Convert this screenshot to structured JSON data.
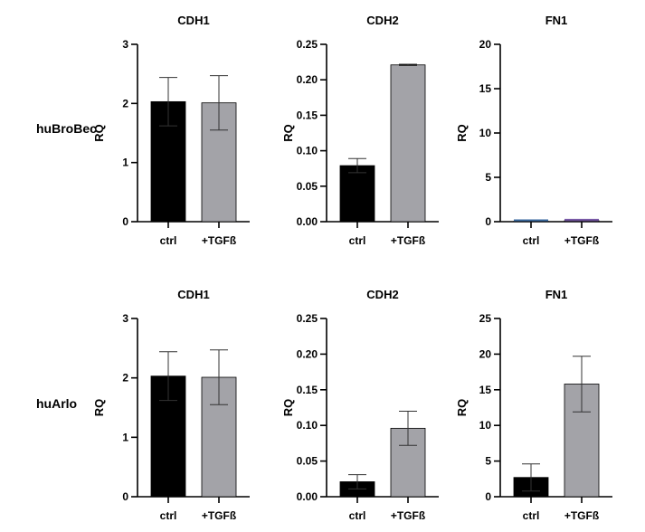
{
  "row_labels": [
    "huBroBec",
    "huArlo"
  ],
  "chart_data": [
    {
      "type": "bar",
      "title": "CDH1",
      "ylabel": "RQ",
      "categories": [
        "ctrl",
        "+TGFß"
      ],
      "values": [
        2.03,
        2.01
      ],
      "errors": [
        0.41,
        0.46
      ],
      "ylim": [
        0,
        3
      ],
      "yticks": [
        "0",
        "1",
        "2",
        "3"
      ],
      "colors": [
        "#000000",
        "#a3a3a8"
      ]
    },
    {
      "type": "bar",
      "title": "CDH2",
      "ylabel": "RQ",
      "categories": [
        "ctrl",
        "+TGFß"
      ],
      "values": [
        0.079,
        0.221
      ],
      "errors": [
        0.01,
        0.001
      ],
      "ylim": [
        0,
        0.25
      ],
      "yticks": [
        "0.00",
        "0.05",
        "0.10",
        "0.15",
        "0.20",
        "0.25"
      ],
      "colors": [
        "#000000",
        "#a3a3a8"
      ]
    },
    {
      "type": "bar",
      "title": "FN1",
      "ylabel": "RQ",
      "categories": [
        "ctrl",
        "+TGFß"
      ],
      "values": [
        0.05,
        0.12
      ],
      "errors": [
        0,
        0
      ],
      "ylim": [
        0,
        20
      ],
      "yticks": [
        "0",
        "5",
        "10",
        "15",
        "20"
      ],
      "colors": [
        "#3a6aa0",
        "#7a5aa8"
      ]
    },
    {
      "type": "bar",
      "title": "CDH1",
      "ylabel": "RQ",
      "categories": [
        "ctrl",
        "+TGFß"
      ],
      "values": [
        2.03,
        2.01
      ],
      "errors": [
        0.41,
        0.46
      ],
      "ylim": [
        0,
        3
      ],
      "yticks": [
        "0",
        "1",
        "2",
        "3"
      ],
      "colors": [
        "#000000",
        "#a3a3a8"
      ]
    },
    {
      "type": "bar",
      "title": "CDH2",
      "ylabel": "RQ",
      "categories": [
        "ctrl",
        "+TGFß"
      ],
      "values": [
        0.021,
        0.096
      ],
      "errors": [
        0.01,
        0.024
      ],
      "ylim": [
        0,
        0.25
      ],
      "yticks": [
        "0.00",
        "0.05",
        "0.10",
        "0.15",
        "0.20",
        "0.25"
      ],
      "colors": [
        "#000000",
        "#a3a3a8"
      ]
    },
    {
      "type": "bar",
      "title": "FN1",
      "ylabel": "RQ",
      "categories": [
        "ctrl",
        "+TGFß"
      ],
      "values": [
        2.7,
        15.8
      ],
      "errors": [
        1.9,
        3.9
      ],
      "ylim": [
        0,
        25
      ],
      "yticks": [
        "0",
        "5",
        "10",
        "15",
        "20",
        "25"
      ],
      "colors": [
        "#000000",
        "#a3a3a8"
      ]
    }
  ]
}
